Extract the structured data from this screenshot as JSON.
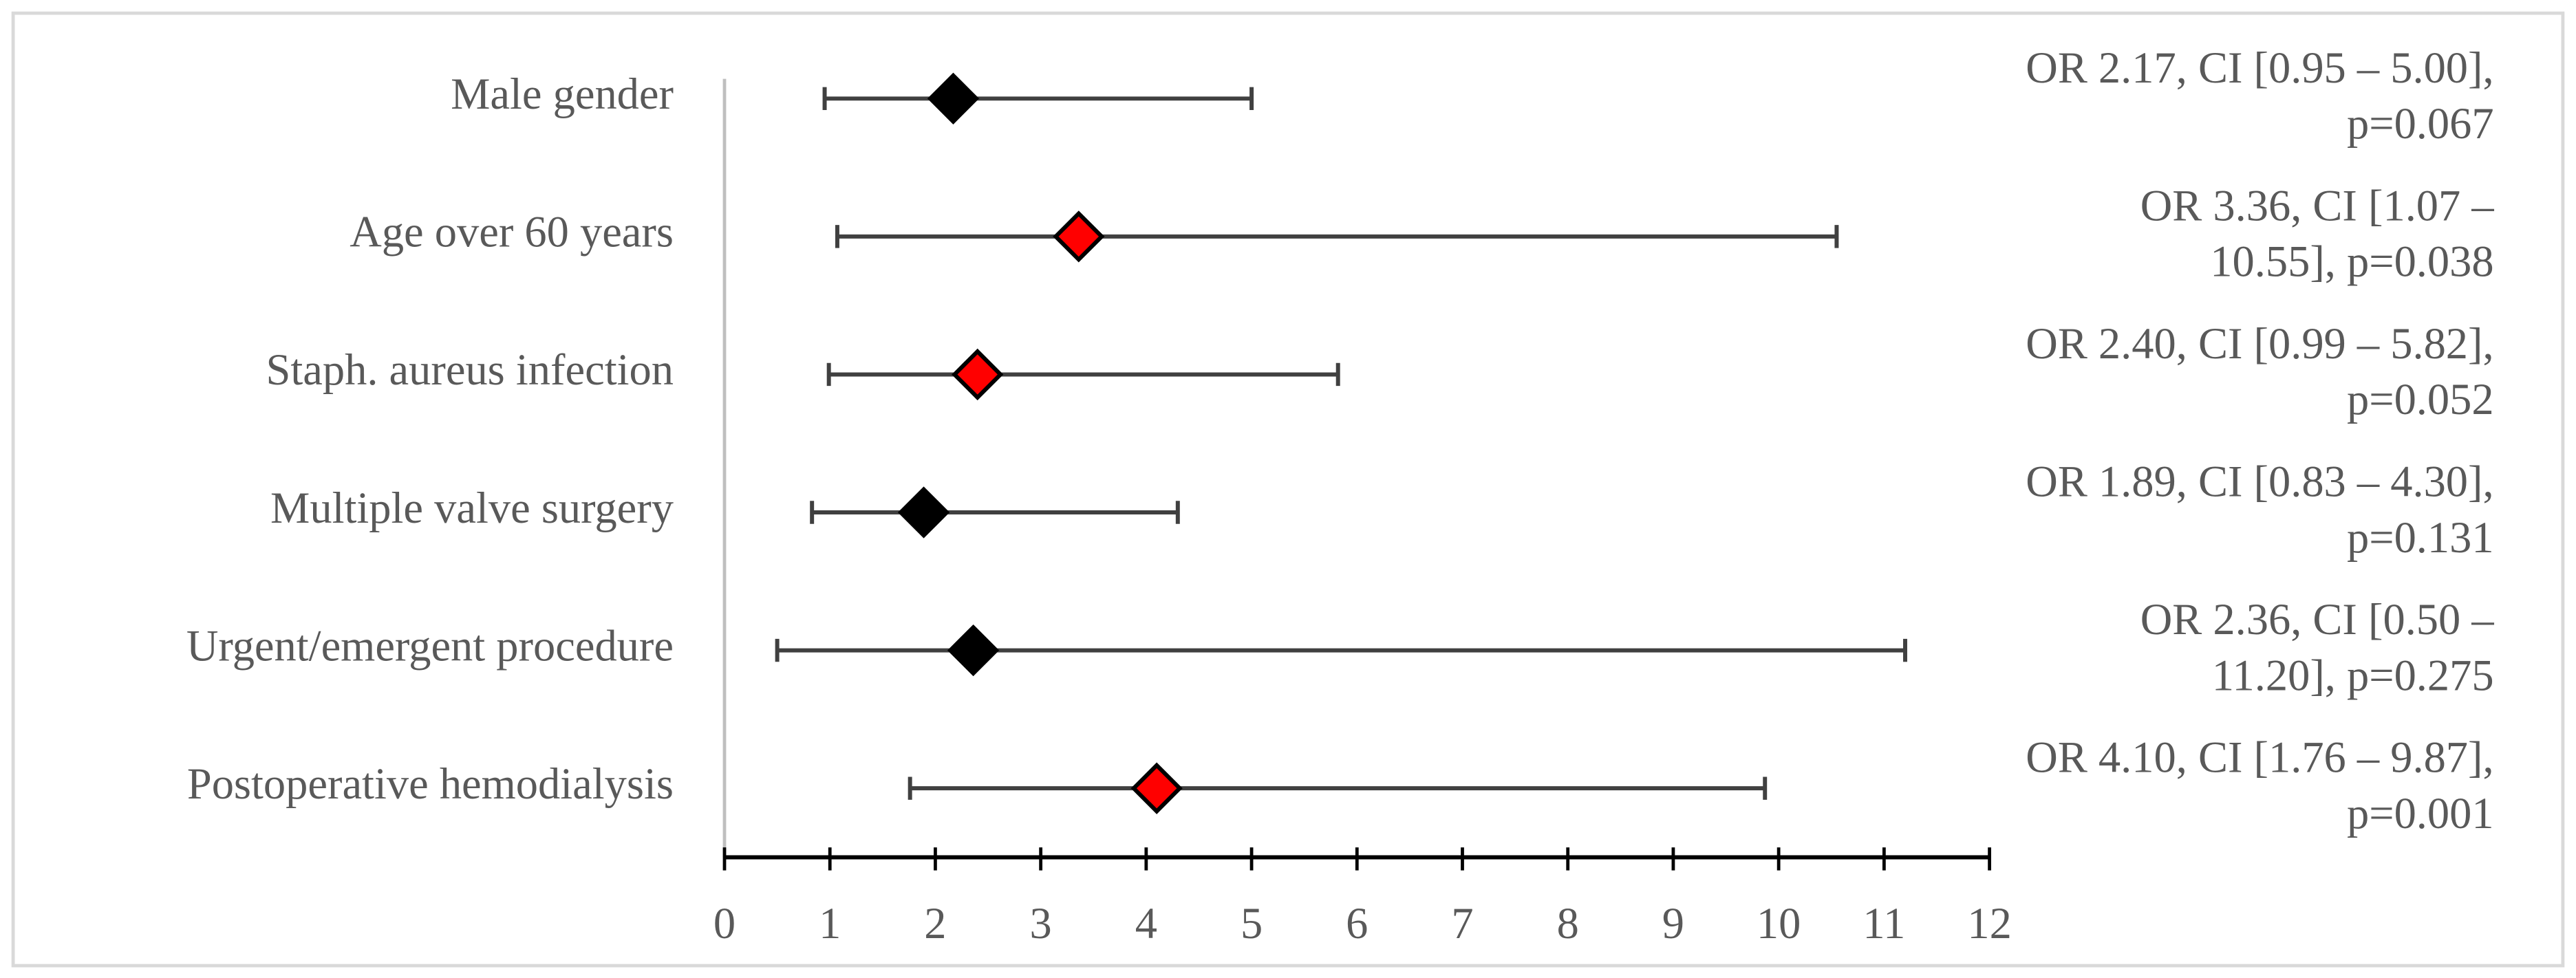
{
  "chart_data": {
    "type": "forest",
    "categories": [
      "Male gender",
      "Age over 60 years",
      "Staph. aureus infection",
      "Multiple valve surgery",
      "Urgent/emergent procedure",
      "Postoperative hemodialysis"
    ],
    "values": [
      2.17,
      3.36,
      2.4,
      1.89,
      2.36,
      4.1
    ],
    "lower": [
      0.95,
      1.07,
      0.99,
      0.83,
      0.5,
      1.76
    ],
    "upper": [
      5.0,
      10.55,
      5.82,
      4.3,
      11.2,
      9.87
    ],
    "colors": [
      "#000000",
      "#ff0000",
      "#ff0000",
      "#000000",
      "#000000",
      "#ff0000"
    ],
    "annotations": [
      [
        "OR 2.17, CI [0.95 – 5.00],",
        "p=0.067"
      ],
      [
        "OR 3.36, CI [1.07 –",
        "10.55], p=0.038"
      ],
      [
        "OR 2.40, CI [0.99 – 5.82],",
        "p=0.052"
      ],
      [
        "OR 1.89, CI [0.83 – 4.30],",
        "p=0.131"
      ],
      [
        "OR 2.36, CI [0.50 –",
        "11.20], p=0.275"
      ],
      [
        "OR 4.10, CI [1.76 – 9.87],",
        "p=0.001"
      ]
    ],
    "xlim": [
      0,
      12
    ],
    "xticks": [
      0,
      1,
      2,
      3,
      4,
      5,
      6,
      7,
      8,
      9,
      10,
      11,
      12
    ],
    "bar_color": "#404040"
  }
}
